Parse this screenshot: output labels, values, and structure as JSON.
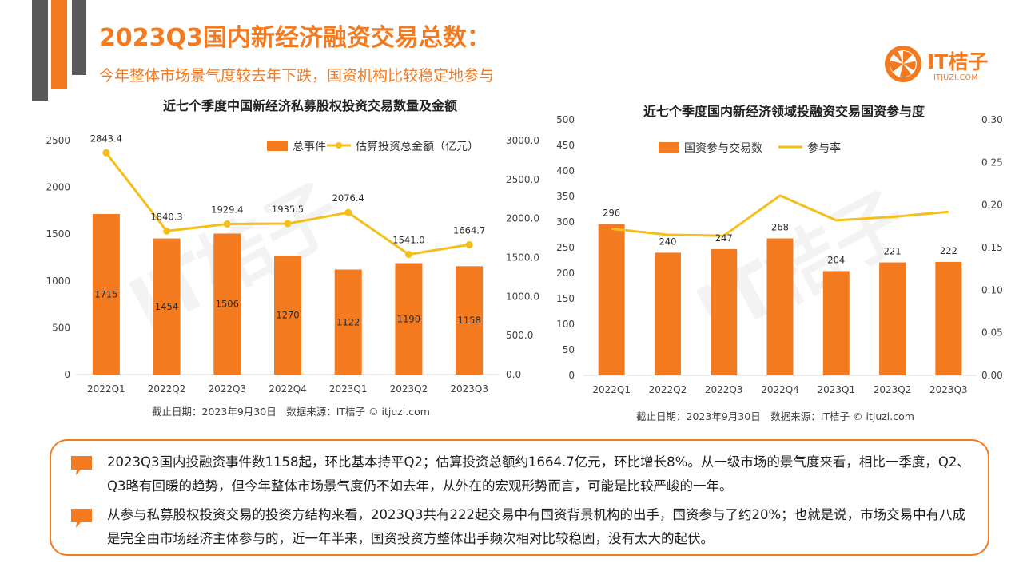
{
  "header": {
    "title": "2023Q3国内新经济融资交易总数：",
    "subtitle": "今年整体市场景气度较去年下跌，国资机构比较稳定地参与"
  },
  "logo": {
    "name": "IT桔子",
    "url": "ITJUZI.COM"
  },
  "watermark": "IT桔子",
  "colors": {
    "accent": "#f47a20",
    "line": "#f5bf1a",
    "gray": "#595959"
  },
  "chart_data": [
    {
      "type": "bar+line",
      "title": "近七个季度中国新经济私募股权投资交易数量及金额",
      "categories": [
        "2022Q1",
        "2022Q2",
        "2022Q3",
        "2022Q4",
        "2023Q1",
        "2023Q2",
        "2023Q3"
      ],
      "series": [
        {
          "name": "总事件",
          "type": "bar",
          "axis": "left",
          "values": [
            1715,
            1454,
            1506,
            1270,
            1122,
            1190,
            1158
          ]
        },
        {
          "name": "估算投资总金额（亿元）",
          "type": "line",
          "axis": "right",
          "values": [
            2843.4,
            1840.3,
            1929.4,
            1935.5,
            2076.4,
            1541.0,
            1664.7
          ]
        }
      ],
      "bar_labels": [
        "1715",
        "1454",
        "1506",
        "1270",
        "1122",
        "1190",
        "1158"
      ],
      "line_labels": [
        "2843.4",
        "1840.3",
        "1929.4",
        "1935.5",
        "2076.4",
        "1541.0",
        "1664.7"
      ],
      "y_left": {
        "ticks": [
          "0",
          "500",
          "1000",
          "1500",
          "2000",
          "2500"
        ],
        "ylim": [
          0,
          2500
        ]
      },
      "y_right": {
        "ticks": [
          "0.0",
          "500.0",
          "1000.0",
          "1500.0",
          "2000.0",
          "2500.0",
          "3000.0"
        ],
        "ylim": [
          0,
          3000
        ]
      },
      "source": "截止日期：2023年9月30日　数据来源：IT桔子 © itjuzi.com"
    },
    {
      "type": "bar+line",
      "title": "近七个季度国内新经济领域投融资交易国资参与度",
      "categories": [
        "2022Q1",
        "2022Q2",
        "2022Q3",
        "2022Q4",
        "2023Q1",
        "2023Q2",
        "2023Q3"
      ],
      "series": [
        {
          "name": "国资参与交易数",
          "type": "bar",
          "axis": "left",
          "values": [
            296,
            240,
            247,
            268,
            204,
            221,
            222
          ]
        },
        {
          "name": "参与率",
          "type": "line",
          "axis": "right",
          "values": [
            0.172,
            0.165,
            0.164,
            0.211,
            0.182,
            0.186,
            0.192
          ]
        }
      ],
      "bar_labels": [
        "296",
        "240",
        "247",
        "268",
        "204",
        "221",
        "222"
      ],
      "y_left": {
        "ticks": [
          "0",
          "50",
          "100",
          "150",
          "200",
          "250",
          "300",
          "350",
          "400",
          "450",
          "500"
        ],
        "ylim": [
          0,
          500
        ]
      },
      "y_right": {
        "ticks": [
          "0.00",
          "0.05",
          "0.10",
          "0.15",
          "0.20",
          "0.25",
          "0.30"
        ],
        "ylim": [
          0,
          0.3
        ]
      },
      "source": "截止日期：2023年9月30日　数据来源：IT桔子 © itjuzi.com"
    }
  ],
  "notes": [
    "2023Q3国内投融资事件数1158起，环比基本持平Q2；估算投资总额约1664.7亿元，环比增长8%。从一级市场的景气度来看，相比一季度，Q2、Q3略有回暖的趋势，但今年整体市场景气度仍不如去年，从外在的宏观形势而言，可能是比较严峻的一年。",
    "从参与私募股权投资交易的投资方结构来看，2023Q3共有222起交易中有国资背景机构的出手，国资参与了约20%；也就是说，市场交易中有八成是完全由市场经济主体参与的，近一年半来，国资投资方整体出手频次相对比较稳固，没有太大的起伏。"
  ]
}
